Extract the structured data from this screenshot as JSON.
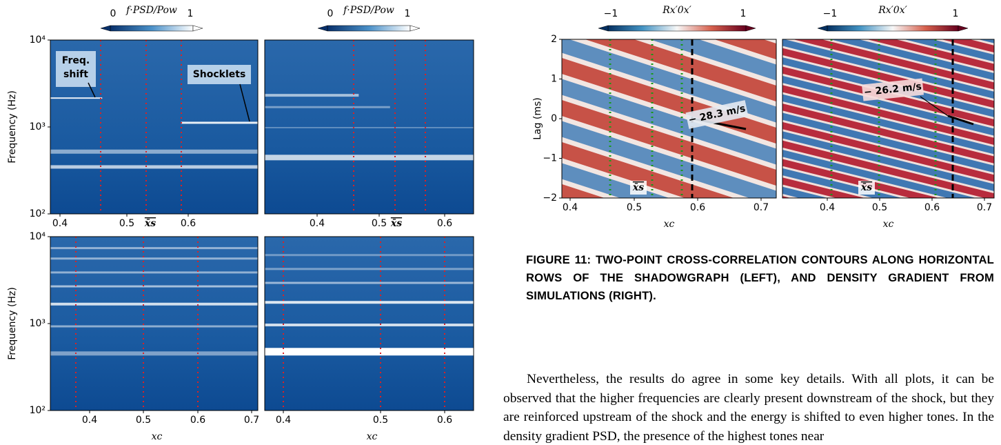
{
  "left_figure": {
    "colorbars": [
      {
        "label": "f·PSD/Pow",
        "min": "0",
        "max": "1"
      },
      {
        "label": "f·PSD/Pow",
        "min": "0",
        "max": "1"
      }
    ],
    "panels": [
      {
        "y_label": "Frequency (Hz)",
        "yticks": [
          "10⁴",
          "10³",
          "10²"
        ],
        "xticks": [
          "0.4",
          "0.5",
          "0.6"
        ],
        "xs_label": "x̄s",
        "freq_shift_label": [
          "Freq.",
          "shift"
        ],
        "shocklets_label": "Shocklets"
      },
      {
        "xticks": [
          "0.4",
          "0.5",
          "0.6"
        ],
        "xs_label": "x̄s"
      },
      {
        "y_label": "Frequency (Hz)",
        "yticks": [
          "10⁴",
          "10³",
          "10²"
        ],
        "xticks": [
          "0.4",
          "0.5",
          "0.6",
          "0.7"
        ],
        "x_label": "xc"
      },
      {
        "xticks": [
          "0.4",
          "0.5",
          "0.6"
        ],
        "x_label": "xc"
      }
    ]
  },
  "right_figure": {
    "colorbars": [
      {
        "label": "Rx′0x′",
        "min": "−1",
        "max": "1"
      },
      {
        "label": "Rx′0x′",
        "min": "−1",
        "max": "1"
      }
    ],
    "panels": [
      {
        "y_label": "Lag (ms)",
        "yticks": [
          "2",
          "1",
          "0",
          "−1",
          "−2"
        ],
        "xticks": [
          "0.4",
          "0.5",
          "0.6",
          "0.7"
        ],
        "x_label": "xc",
        "xs_label": "x̄s",
        "speed_label": "− 28.3 m/s"
      },
      {
        "xticks": [
          "0.4",
          "0.5",
          "0.6",
          "0.7"
        ],
        "x_label": "xc",
        "xs_label": "x̄s",
        "speed_label": "− 26.2 m/s"
      }
    ]
  },
  "caption": "FIGURE 11: TWO-POINT CROSS-CORRELATION CONTOURS ALONG HORIZONTAL ROWS OF THE SHADOWGRAPH (LEFT), AND DENSITY GRADIENT FROM SIMULATIONS (RIGHT).",
  "paragraph": "Nevertheless, the results do agree in some key details. With all plots, it can be observed that the higher frequencies are clearly present downstream of the shock, but they are reinforced upstream of the shock and the energy is shifted to even higher tones. In the density gradient PSD, the presence of the highest tones near"
}
